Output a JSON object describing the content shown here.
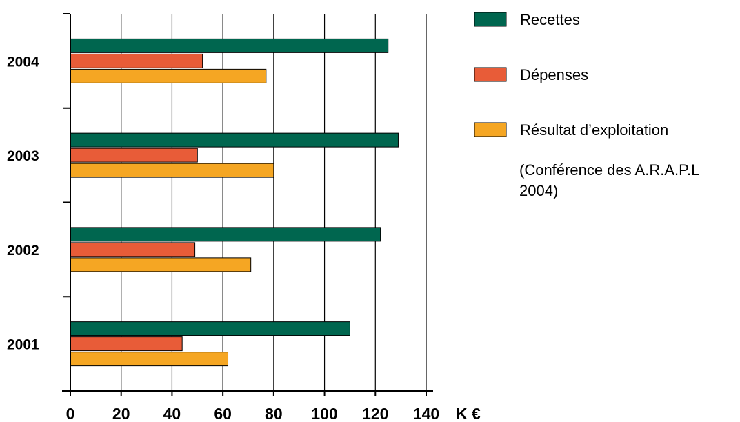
{
  "chart_data": {
    "type": "bar",
    "orientation": "horizontal",
    "categories": [
      "2001",
      "2002",
      "2003",
      "2004"
    ],
    "series": [
      {
        "name": "Recettes",
        "color": "#00664f",
        "values": [
          110,
          122,
          129,
          125
        ]
      },
      {
        "name": "Dépenses",
        "color": "#e85c38",
        "values": [
          44,
          49,
          50,
          52
        ]
      },
      {
        "name": "Résultat d’exploitation",
        "color": "#f5a623",
        "values": [
          62,
          71,
          80,
          77
        ]
      }
    ],
    "xticks": [
      "0",
      "20",
      "40",
      "60",
      "80",
      "100",
      "120",
      "140"
    ],
    "xlim": [
      0,
      140
    ],
    "xunit": "K €",
    "grid": true,
    "legend_position": "right",
    "note_lines": [
      "(Conférence des A.R.A.P.L",
      "2004)"
    ]
  }
}
